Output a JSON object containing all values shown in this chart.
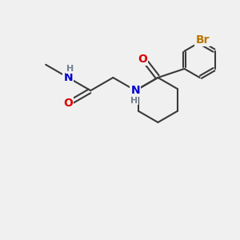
{
  "background_color": "#f0f0f0",
  "bond_color": "#3a3a3a",
  "bond_width": 1.5,
  "atom_colors": {
    "N": "#0000cc",
    "O": "#dd0000",
    "Br": "#bb7700",
    "H": "#708090",
    "C": "#3a3a3a"
  },
  "font_size_atom": 10,
  "font_size_h": 8,
  "figsize": [
    3.0,
    3.0
  ],
  "dpi": 100
}
